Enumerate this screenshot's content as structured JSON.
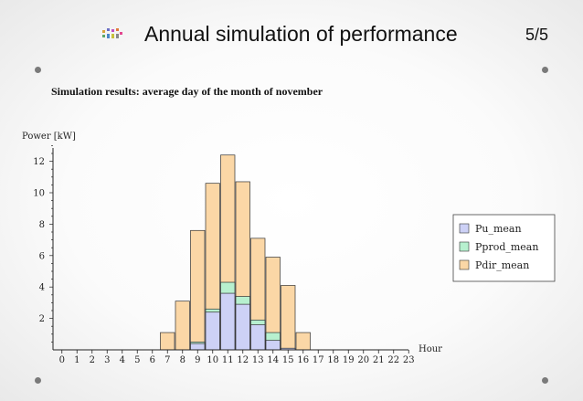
{
  "slide": {
    "title": "Annual simulation of performance",
    "page_number": "5/5",
    "subtitle": "Simulation results: average day of the month of november"
  },
  "chart_data": {
    "type": "bar",
    "stacked": false,
    "xlabel": "Hour",
    "ylabel": "Power [kW]",
    "categories": [
      "0",
      "1",
      "2",
      "3",
      "4",
      "5",
      "6",
      "7",
      "8",
      "9",
      "10",
      "11",
      "12",
      "13",
      "14",
      "15",
      "16",
      "17",
      "18",
      "19",
      "20",
      "21",
      "22",
      "23"
    ],
    "y_ticks": [
      "2",
      "4",
      "6",
      "8",
      "10",
      "12"
    ],
    "ylim": [
      0,
      13
    ],
    "series": [
      {
        "name": "Pdir_mean",
        "color": "#fbd7a6",
        "values": [
          0,
          0,
          0,
          0,
          0,
          0,
          0,
          1.1,
          3.1,
          7.6,
          10.6,
          12.4,
          10.7,
          7.1,
          5.9,
          4.1,
          1.1,
          0,
          0,
          0,
          0,
          0,
          0,
          0
        ]
      },
      {
        "name": "Pprod_mean",
        "color": "#b7f0cf",
        "values": [
          0,
          0,
          0,
          0,
          0,
          0,
          0,
          0,
          0,
          0.5,
          2.6,
          4.3,
          3.4,
          1.9,
          1.1,
          0.1,
          0,
          0,
          0,
          0,
          0,
          0,
          0,
          0
        ]
      },
      {
        "name": "Pu_mean",
        "color": "#cdd1f6",
        "values": [
          0,
          0,
          0,
          0,
          0,
          0,
          0,
          0,
          0,
          0.4,
          2.4,
          3.6,
          2.9,
          1.6,
          0.6,
          0.1,
          0,
          0,
          0,
          0,
          0,
          0,
          0,
          0
        ]
      }
    ],
    "legend": {
      "position": "right",
      "entries": [
        {
          "label": "Pu_mean",
          "color": "#cdd1f6"
        },
        {
          "label": "Pprod_mean",
          "color": "#b7f0cf"
        },
        {
          "label": "Pdir_mean",
          "color": "#fbd7a6"
        }
      ]
    }
  }
}
